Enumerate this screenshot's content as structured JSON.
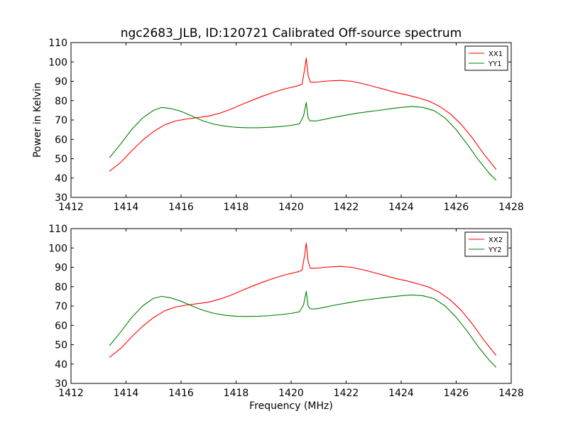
{
  "chart_data": [
    {
      "type": "line",
      "title": "ngc2683_JLB, ID:120721 Calibrated Off-source spectrum",
      "xlabel": "",
      "ylabel": "Power in Kelvin",
      "xlim": [
        1412,
        1428
      ],
      "ylim": [
        30,
        110
      ],
      "xticks": [
        1412,
        1414,
        1416,
        1418,
        1420,
        1422,
        1424,
        1426,
        1428
      ],
      "yticks": [
        30,
        40,
        50,
        60,
        70,
        80,
        90,
        100,
        110
      ],
      "legend": "top-right",
      "grid": false,
      "series": [
        {
          "name": "XX1",
          "color": "#ff0000",
          "x": [
            1413.4,
            1413.8,
            1414.2,
            1414.6,
            1415.0,
            1415.4,
            1415.8,
            1416.2,
            1416.6,
            1417.0,
            1417.4,
            1417.8,
            1418.2,
            1418.6,
            1419.0,
            1419.4,
            1419.8,
            1420.2,
            1420.4,
            1420.5,
            1420.55,
            1420.62,
            1420.7,
            1420.9,
            1421.2,
            1421.5,
            1421.8,
            1422.2,
            1422.6,
            1423.0,
            1423.4,
            1423.8,
            1424.2,
            1424.6,
            1425.0,
            1425.4,
            1425.8,
            1426.2,
            1426.6,
            1427.0,
            1427.45
          ],
          "values": [
            43.5,
            48,
            54,
            59.5,
            64,
            67.5,
            69.5,
            70.5,
            71.2,
            72,
            73.5,
            75.5,
            78,
            80.3,
            82.5,
            84.5,
            86.2,
            87.5,
            88.5,
            97,
            102,
            93,
            89.5,
            89.5,
            90,
            90.3,
            90.5,
            90,
            88.8,
            87.3,
            85.8,
            84.2,
            83,
            81.5,
            79.8,
            77,
            73,
            67.5,
            60.5,
            52.5,
            44.5
          ]
        },
        {
          "name": "YY1",
          "color": "#008000",
          "x": [
            1413.4,
            1413.8,
            1414.2,
            1414.6,
            1415.0,
            1415.3,
            1415.6,
            1416.0,
            1416.4,
            1416.8,
            1417.2,
            1417.6,
            1418.0,
            1418.4,
            1418.8,
            1419.2,
            1419.6,
            1420.0,
            1420.3,
            1420.45,
            1420.55,
            1420.62,
            1420.7,
            1420.9,
            1421.2,
            1421.6,
            1422.0,
            1422.4,
            1422.8,
            1423.2,
            1423.6,
            1424.0,
            1424.4,
            1424.8,
            1425.2,
            1425.6,
            1426.0,
            1426.4,
            1426.8,
            1427.2,
            1427.45
          ],
          "values": [
            50.5,
            57.5,
            65,
            71,
            75,
            76.5,
            76,
            74.5,
            72,
            69.5,
            67.8,
            66.8,
            66.2,
            66,
            66,
            66.2,
            66.6,
            67.2,
            68,
            72,
            79,
            71,
            69.5,
            69.5,
            70.3,
            71.5,
            72.5,
            73.5,
            74.3,
            75,
            75.8,
            76.5,
            77,
            76.5,
            74.8,
            71,
            65,
            57.5,
            49.5,
            42.5,
            38.8
          ]
        }
      ]
    },
    {
      "type": "line",
      "title": "",
      "xlabel": "Frequency (MHz)",
      "ylabel": "",
      "xlim": [
        1412,
        1428
      ],
      "ylim": [
        30,
        110
      ],
      "xticks": [
        1412,
        1414,
        1416,
        1418,
        1420,
        1422,
        1424,
        1426,
        1428
      ],
      "yticks": [
        30,
        40,
        50,
        60,
        70,
        80,
        90,
        100,
        110
      ],
      "legend": "top-right",
      "grid": false,
      "series": [
        {
          "name": "XX2",
          "color": "#ff0000",
          "x": [
            1413.4,
            1413.8,
            1414.2,
            1414.6,
            1415.0,
            1415.4,
            1415.8,
            1416.2,
            1416.6,
            1417.0,
            1417.4,
            1417.8,
            1418.2,
            1418.6,
            1419.0,
            1419.4,
            1419.8,
            1420.2,
            1420.4,
            1420.5,
            1420.55,
            1420.62,
            1420.7,
            1420.9,
            1421.2,
            1421.5,
            1421.8,
            1422.2,
            1422.6,
            1423.0,
            1423.4,
            1423.8,
            1424.2,
            1424.6,
            1425.0,
            1425.4,
            1425.8,
            1426.2,
            1426.6,
            1427.0,
            1427.45
          ],
          "values": [
            43.5,
            48,
            54,
            59.5,
            64,
            67.5,
            69.5,
            70.5,
            71.2,
            72,
            73.5,
            75.5,
            78,
            80.3,
            82.5,
            84.5,
            86.2,
            87.5,
            88.5,
            97,
            102.5,
            93,
            89.5,
            89.5,
            90,
            90.3,
            90.5,
            90,
            88.8,
            87.3,
            85.8,
            84.2,
            83,
            81.5,
            79.8,
            77,
            73,
            67.5,
            60.5,
            52.5,
            44.5
          ]
        },
        {
          "name": "YY2",
          "color": "#008000",
          "x": [
            1413.4,
            1413.8,
            1414.2,
            1414.6,
            1415.0,
            1415.3,
            1415.6,
            1416.0,
            1416.4,
            1416.8,
            1417.2,
            1417.6,
            1418.0,
            1418.4,
            1418.8,
            1419.2,
            1419.6,
            1420.0,
            1420.3,
            1420.45,
            1420.55,
            1420.62,
            1420.7,
            1420.9,
            1421.2,
            1421.6,
            1422.0,
            1422.4,
            1422.8,
            1423.2,
            1423.6,
            1424.0,
            1424.4,
            1424.8,
            1425.2,
            1425.6,
            1426.0,
            1426.4,
            1426.8,
            1427.2,
            1427.45
          ],
          "values": [
            49.5,
            56.5,
            64,
            70,
            74,
            75,
            74.3,
            72.5,
            70,
            67.8,
            66.2,
            65.2,
            64.7,
            64.6,
            64.7,
            65,
            65.5,
            66.2,
            67,
            70.5,
            77.5,
            70,
            68.5,
            68.5,
            69.3,
            70.5,
            71.5,
            72.5,
            73.3,
            74,
            74.7,
            75.3,
            75.7,
            75.3,
            73.8,
            70,
            64.2,
            57,
            49,
            42,
            38.3
          ]
        }
      ]
    }
  ]
}
